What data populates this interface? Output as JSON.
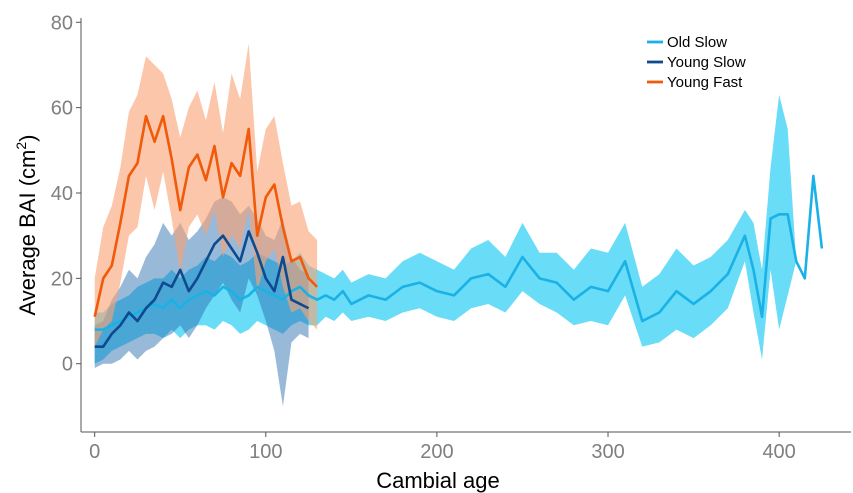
{
  "chart_data": {
    "type": "line",
    "xlabel": "Cambial age",
    "ylabel_main": "Average BAI  (cm",
    "ylabel_sup": "2",
    "ylabel_end": ")",
    "xlim": [
      -8,
      442
    ],
    "ylim": [
      -16,
      81
    ],
    "x_ticks": [
      0,
      100,
      200,
      300,
      400
    ],
    "x_tick_labels": [
      "0",
      "100",
      "200",
      "300",
      "400"
    ],
    "y_ticks": [
      0,
      20,
      40,
      60,
      80
    ],
    "y_tick_labels": [
      "0",
      "20",
      "40",
      "60",
      "80"
    ],
    "grid": false,
    "legend_position": "top-right",
    "series": [
      {
        "name": "Old Slow",
        "color": "#1ab2e6",
        "band_color": "#3fd2f5",
        "x": [
          0,
          5,
          10,
          15,
          20,
          25,
          30,
          35,
          40,
          45,
          50,
          55,
          60,
          65,
          70,
          75,
          80,
          85,
          90,
          95,
          100,
          105,
          110,
          115,
          120,
          125,
          130,
          135,
          140,
          145,
          150,
          160,
          170,
          180,
          190,
          200,
          210,
          220,
          230,
          240,
          250,
          260,
          270,
          280,
          290,
          300,
          310,
          320,
          330,
          340,
          350,
          360,
          370,
          380,
          385,
          390,
          395,
          400,
          405,
          410,
          415,
          420,
          425
        ],
        "y": [
          8,
          8,
          9,
          10,
          11,
          12,
          13,
          14,
          13,
          15,
          13,
          15,
          16,
          17,
          16,
          18,
          17,
          15,
          16,
          18,
          17,
          16,
          15,
          17,
          18,
          16,
          15,
          16,
          15,
          17,
          14,
          16,
          15,
          18,
          19,
          17,
          16,
          20,
          21,
          18,
          25,
          20,
          19,
          15,
          18,
          17,
          24,
          10,
          12,
          17,
          14,
          17,
          21,
          30,
          22,
          11,
          34,
          35,
          35,
          24,
          20,
          44,
          27
        ],
        "upper": [
          12,
          12,
          14,
          15,
          16,
          18,
          19,
          20,
          20,
          22,
          20,
          22,
          23,
          25,
          24,
          26,
          25,
          23,
          24,
          26,
          25,
          24,
          23,
          24,
          26,
          23,
          22,
          21,
          20,
          22,
          19,
          21,
          20,
          24,
          26,
          24,
          22,
          27,
          29,
          25,
          33,
          26,
          26,
          22,
          27,
          26,
          33,
          18,
          21,
          27,
          23,
          25,
          29,
          36,
          33,
          22,
          46,
          63,
          55,
          24,
          20,
          44,
          27
        ],
        "lower": [
          0,
          1,
          3,
          4,
          5,
          6,
          7,
          7,
          6,
          8,
          6,
          8,
          9,
          9,
          8,
          10,
          9,
          7,
          8,
          10,
          9,
          8,
          7,
          9,
          10,
          9,
          9,
          11,
          10,
          12,
          10,
          11,
          10,
          12,
          13,
          11,
          10,
          13,
          14,
          12,
          17,
          14,
          12,
          9,
          10,
          9,
          16,
          4,
          5,
          8,
          6,
          9,
          13,
          24,
          12,
          1,
          22,
          8,
          16,
          24,
          20,
          44,
          27
        ]
      },
      {
        "name": "Young Slow",
        "color": "#0d4a8f",
        "band_color": "#2a6cb0",
        "x": [
          0,
          5,
          10,
          15,
          20,
          25,
          30,
          35,
          40,
          45,
          50,
          55,
          60,
          65,
          70,
          75,
          80,
          85,
          90,
          95,
          100,
          105,
          110,
          115,
          120,
          125
        ],
        "y": [
          4,
          4,
          7,
          9,
          12,
          10,
          13,
          15,
          19,
          18,
          22,
          17,
          20,
          24,
          28,
          30,
          27,
          24,
          31,
          26,
          20,
          17,
          25,
          15,
          14,
          13
        ],
        "upper": [
          9,
          10,
          15,
          18,
          22,
          20,
          25,
          28,
          33,
          30,
          33,
          29,
          31,
          34,
          38,
          39,
          38,
          35,
          37,
          34,
          30,
          29,
          34,
          25,
          22,
          21
        ],
        "lower": [
          -1,
          0,
          0,
          1,
          3,
          1,
          3,
          4,
          6,
          7,
          9,
          6,
          9,
          13,
          16,
          19,
          15,
          12,
          20,
          16,
          10,
          3,
          -10,
          5,
          7,
          6
        ]
      },
      {
        "name": "Young Fast",
        "color": "#f05a0a",
        "band_color": "#f9a374",
        "x": [
          0,
          5,
          10,
          15,
          20,
          25,
          30,
          35,
          40,
          45,
          50,
          55,
          60,
          65,
          70,
          75,
          80,
          85,
          90,
          95,
          100,
          105,
          110,
          115,
          120,
          125,
          130
        ],
        "y": [
          11,
          20,
          23,
          33,
          44,
          47,
          58,
          52,
          58,
          48,
          36,
          46,
          49,
          43,
          51,
          39,
          47,
          44,
          55,
          30,
          39,
          42,
          32,
          24,
          25,
          20,
          18
        ],
        "upper": [
          20,
          32,
          37,
          46,
          59,
          63,
          72,
          70,
          68,
          62,
          53,
          60,
          64,
          57,
          66,
          54,
          68,
          62,
          75,
          45,
          55,
          58,
          47,
          37,
          38,
          31,
          29
        ],
        "lower": [
          4,
          8,
          10,
          19,
          30,
          32,
          44,
          36,
          45,
          34,
          21,
          32,
          35,
          30,
          36,
          25,
          30,
          27,
          36,
          17,
          24,
          27,
          18,
          12,
          13,
          10,
          8
        ]
      }
    ]
  }
}
